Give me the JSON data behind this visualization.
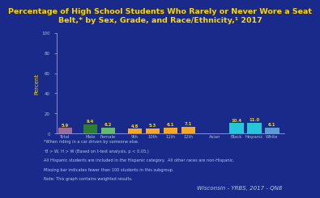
{
  "title": "Percentage of High School Students Who Rarely or Never Wore a Seat\nBelt,* by Sex, Grade, and Race/Ethnicity,¹ 2017",
  "ylabel": "Percent",
  "categories": [
    "Total",
    "Male",
    "Female",
    "9th",
    "10th",
    "11th",
    "12th",
    "Asian",
    "Black",
    "Hispanic",
    "White"
  ],
  "values": [
    5.9,
    9.4,
    6.2,
    4.8,
    5.3,
    6.1,
    7.1,
    null,
    10.4,
    11.0,
    6.1
  ],
  "bar_colors": [
    "#9B6B9B",
    "#2E7D32",
    "#66BB6A",
    "#F9A825",
    "#F9A825",
    "#F9A825",
    "#F9A825",
    "#29B6F6",
    "#26C6DA",
    "#26C6DA",
    "#5C9BD6"
  ],
  "ylim": [
    0,
    100
  ],
  "yticks": [
    0,
    20,
    40,
    60,
    80,
    100
  ],
  "bg_color": "#1a2a8a",
  "title_color": "#FFD700",
  "label_color": "#FFD700",
  "bar_label_color": "#FFD700",
  "tick_color": "#AABBDD",
  "footnote_lines": [
    "*When riding in a car driven by someone else.",
    "¹B > W, H > W (Based on t-test analysis, p < 0.05.)",
    "All Hispanic students are included in the Hispanic category.  All other races are non-Hispanic.",
    "Missing bar indicates fewer than 100 students in this subgroup.",
    "Note: This graph contains weighted results."
  ],
  "watermark": "Wisconsin - YRBS, 2017 - QN8",
  "positions": [
    0,
    1.4,
    2.4,
    3.9,
    4.9,
    5.9,
    6.9,
    8.4,
    9.6,
    10.6,
    11.6
  ],
  "xlim": [
    -0.5,
    12.3
  ],
  "bar_width": 0.8
}
